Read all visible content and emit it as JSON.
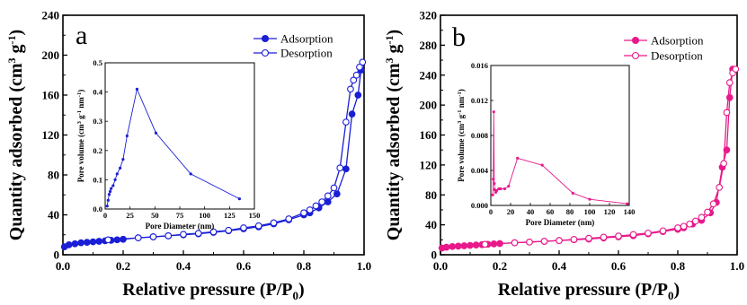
{
  "chart_data": [
    {
      "type": "line",
      "panel_label": "a",
      "xlabel": "Relative pressure (P/P",
      "xlabel_sub": "0",
      "xlabel_close": ")",
      "ylabel": "Quantity adsorbed (cm",
      "ylabel_sup1": "3",
      "ylabel_mid": " g",
      "ylabel_sup2": "-1",
      "ylabel_close": ")",
      "xlim": [
        0,
        1.0
      ],
      "ylim": [
        0,
        240
      ],
      "x_ticks": [
        0.0,
        0.2,
        0.4,
        0.6,
        0.8,
        1.0
      ],
      "x_tick_labels": [
        "0.0",
        "0.2",
        "0.4",
        "0.6",
        "0.8",
        "1.0"
      ],
      "y_ticks": [
        0,
        40,
        80,
        120,
        160,
        200,
        240
      ],
      "y_tick_labels": [
        "0",
        "40",
        "80",
        "120",
        "160",
        "200",
        "240"
      ],
      "legend_position": "top-right",
      "color": "#1a1fd6",
      "series": [
        {
          "name": "Adsorption",
          "marker": "filled-circle",
          "x": [
            0.005,
            0.02,
            0.04,
            0.06,
            0.08,
            0.1,
            0.12,
            0.14,
            0.16,
            0.18,
            0.2,
            0.25,
            0.3,
            0.35,
            0.4,
            0.45,
            0.5,
            0.55,
            0.6,
            0.65,
            0.7,
            0.75,
            0.8,
            0.82,
            0.85,
            0.88,
            0.91,
            0.94,
            0.96,
            0.98,
            0.99
          ],
          "y": [
            8,
            10,
            11,
            12,
            12.5,
            13,
            13.5,
            14,
            14.5,
            15,
            15.5,
            17,
            18,
            19,
            20,
            21,
            22.5,
            24,
            26,
            28,
            31,
            35,
            40,
            42,
            47,
            53,
            61,
            86,
            141,
            160,
            185
          ]
        },
        {
          "name": "Desorption",
          "marker": "open-circle",
          "x": [
            0.15,
            0.25,
            0.3,
            0.35,
            0.4,
            0.45,
            0.5,
            0.55,
            0.6,
            0.65,
            0.7,
            0.75,
            0.8,
            0.82,
            0.84,
            0.86,
            0.88,
            0.9,
            0.92,
            0.94,
            0.955,
            0.965,
            0.975,
            0.985,
            0.995
          ],
          "y": [
            15,
            17,
            18,
            19,
            20.5,
            21.5,
            23,
            24.5,
            27,
            29,
            32,
            36,
            42,
            45,
            49,
            53,
            59,
            67,
            87,
            133,
            166,
            175,
            180,
            188,
            193
          ]
        }
      ],
      "inset": {
        "type": "line",
        "xlabel": "Pore Diameter (nm)",
        "ylabel": "Pore volume (cm",
        "ylabel_sup1": "3",
        "ylabel_mid": " g",
        "ylabel_sup2": "-1",
        "ylabel_mid2": " nm",
        "ylabel_sup3": "-1",
        "ylabel_close": ")",
        "xlim": [
          0,
          150
        ],
        "ylim": [
          0,
          0.5
        ],
        "x_ticks": [
          0,
          25,
          50,
          75,
          100,
          125,
          150
        ],
        "x_tick_labels": [
          "0",
          "25",
          "50",
          "75",
          "100",
          "125",
          "150"
        ],
        "y_ticks": [
          0.0,
          0.1,
          0.2,
          0.3,
          0.4,
          0.5
        ],
        "y_tick_labels": [
          "0.0",
          "0.1",
          "0.2",
          "0.3",
          "0.4",
          "0.5"
        ],
        "x": [
          2,
          3,
          4,
          5,
          6,
          8,
          10,
          12,
          15,
          18,
          22,
          32,
          51,
          86,
          135
        ],
        "y": [
          0.01,
          0.03,
          0.05,
          0.06,
          0.07,
          0.08,
          0.1,
          0.12,
          0.14,
          0.17,
          0.25,
          0.41,
          0.26,
          0.12,
          0.035
        ]
      }
    },
    {
      "type": "line",
      "panel_label": "b",
      "xlabel": "Relative pressure (P/P",
      "xlabel_sub": "0",
      "xlabel_close": ")",
      "ylabel": "Quantity adsorbed (cm",
      "ylabel_sup1": "3",
      "ylabel_mid": " g",
      "ylabel_sup2": "-1",
      "ylabel_close": ")",
      "xlim": [
        0,
        1.0
      ],
      "ylim": [
        0,
        320
      ],
      "x_ticks": [
        0.0,
        0.2,
        0.4,
        0.6,
        0.8,
        1.0
      ],
      "x_tick_labels": [
        "0.0",
        "0.2",
        "0.4",
        "0.6",
        "0.8",
        "1.0"
      ],
      "y_ticks": [
        0,
        40,
        80,
        120,
        160,
        200,
        240,
        280,
        320
      ],
      "y_tick_labels": [
        "0",
        "40",
        "80",
        "120",
        "160",
        "200",
        "240",
        "280",
        "320"
      ],
      "legend_position": "top-right",
      "color": "#e8198b",
      "series": [
        {
          "name": "Adsorption",
          "marker": "filled-circle",
          "x": [
            0.005,
            0.02,
            0.04,
            0.06,
            0.08,
            0.1,
            0.12,
            0.14,
            0.16,
            0.18,
            0.2,
            0.25,
            0.3,
            0.35,
            0.4,
            0.45,
            0.5,
            0.55,
            0.6,
            0.65,
            0.7,
            0.75,
            0.8,
            0.82,
            0.85,
            0.88,
            0.91,
            0.93,
            0.95,
            0.965,
            0.975,
            0.985
          ],
          "y": [
            9,
            10,
            11,
            11.5,
            12,
            12.5,
            13,
            13.5,
            14,
            14.5,
            15,
            16,
            17,
            18,
            19,
            20,
            21,
            22.5,
            24,
            25.5,
            28,
            31,
            34,
            36,
            41,
            46,
            56,
            70,
            117,
            140,
            210,
            248
          ]
        },
        {
          "name": "Desorption",
          "marker": "open-circle",
          "x": [
            0.15,
            0.25,
            0.3,
            0.35,
            0.4,
            0.45,
            0.5,
            0.55,
            0.6,
            0.65,
            0.7,
            0.75,
            0.8,
            0.82,
            0.84,
            0.86,
            0.88,
            0.9,
            0.92,
            0.94,
            0.955,
            0.965,
            0.975,
            0.985,
            0.995
          ],
          "y": [
            14,
            16,
            17,
            18,
            19,
            20.5,
            22,
            23.5,
            25,
            27,
            29,
            32,
            36,
            38,
            41,
            45,
            50,
            57,
            68,
            90,
            122,
            190,
            230,
            243,
            248
          ]
        }
      ],
      "inset": {
        "type": "line",
        "xlabel": "Pore Diameter (nm)",
        "ylabel": "Pore volume (cm",
        "ylabel_sup1": "3",
        "ylabel_mid": " g",
        "ylabel_sup2": "-1",
        "ylabel_mid2": " nm",
        "ylabel_sup3": "-1",
        "ylabel_close": ")",
        "xlim": [
          0,
          140
        ],
        "ylim": [
          0,
          0.016
        ],
        "x_ticks": [
          0,
          20,
          40,
          60,
          80,
          100,
          120,
          140
        ],
        "x_tick_labels": [
          "0",
          "20",
          "40",
          "60",
          "80",
          "100",
          "120",
          "140"
        ],
        "y_ticks": [
          0.0,
          0.004,
          0.008,
          0.012,
          0.016
        ],
        "y_tick_labels": [
          "0.000",
          "0.004",
          "0.008",
          "0.012",
          "0.016"
        ],
        "x": [
          2,
          2.5,
          3,
          3.5,
          4,
          5,
          6,
          8,
          10,
          14,
          18,
          27,
          52,
          83,
          100,
          138
        ],
        "y": [
          0.0012,
          0.003,
          0.0107,
          0.0025,
          0.0018,
          0.0015,
          0.0017,
          0.0019,
          0.0019,
          0.0019,
          0.0022,
          0.0054,
          0.0046,
          0.0014,
          0.0007,
          0.0002
        ]
      }
    }
  ]
}
